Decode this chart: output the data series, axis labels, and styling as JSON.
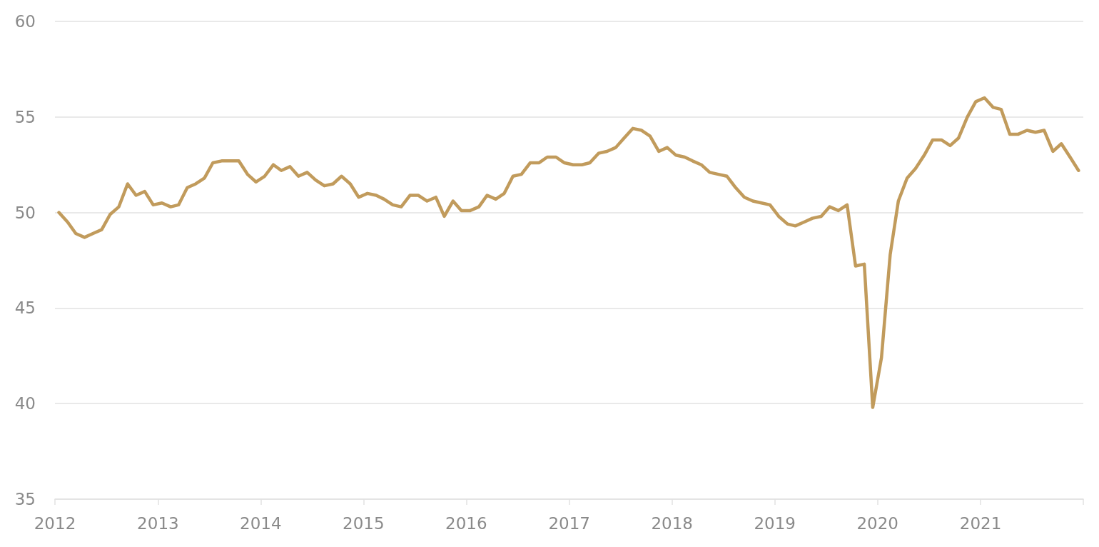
{
  "chart_data": {
    "type": "line",
    "x": [
      "2012-01-15",
      "2012-02-15",
      "2012-03-15",
      "2012-04-15",
      "2012-05-15",
      "2012-06-15",
      "2012-07-15",
      "2012-08-15",
      "2012-09-15",
      "2012-10-15",
      "2012-11-15",
      "2012-12-15",
      "2013-01-15",
      "2013-02-15",
      "2013-03-15",
      "2013-04-15",
      "2013-05-15",
      "2013-06-15",
      "2013-07-15",
      "2013-08-15",
      "2013-09-15",
      "2013-10-15",
      "2013-11-15",
      "2013-12-15",
      "2014-01-15",
      "2014-02-15",
      "2014-03-15",
      "2014-04-15",
      "2014-05-15",
      "2014-06-15",
      "2014-07-15",
      "2014-08-15",
      "2014-09-15",
      "2014-10-15",
      "2014-11-15",
      "2014-12-15",
      "2015-01-15",
      "2015-02-15",
      "2015-03-15",
      "2015-04-15",
      "2015-05-15",
      "2015-06-15",
      "2015-07-15",
      "2015-08-15",
      "2015-09-15",
      "2015-10-15",
      "2015-11-15",
      "2015-12-15",
      "2016-01-15",
      "2016-02-15",
      "2016-03-15",
      "2016-04-15",
      "2016-05-15",
      "2016-06-15",
      "2016-07-15",
      "2016-08-15",
      "2016-09-15",
      "2016-10-15",
      "2016-11-15",
      "2016-12-15",
      "2017-01-15",
      "2017-02-15",
      "2017-03-15",
      "2017-04-15",
      "2017-05-15",
      "2017-06-15",
      "2017-07-15",
      "2017-08-15",
      "2017-09-15",
      "2017-10-15",
      "2017-11-15",
      "2017-12-15",
      "2018-01-15",
      "2018-02-15",
      "2018-03-15",
      "2018-04-15",
      "2018-05-15",
      "2018-06-15",
      "2018-07-15",
      "2018-08-15",
      "2018-09-15",
      "2018-10-15",
      "2018-11-15",
      "2018-12-15",
      "2019-01-15",
      "2019-02-15",
      "2019-03-15",
      "2019-04-15",
      "2019-05-15",
      "2019-06-15",
      "2019-07-15",
      "2019-08-15",
      "2019-09-15",
      "2019-10-15",
      "2019-11-15",
      "2019-12-15",
      "2020-01-15",
      "2020-02-15",
      "2020-03-15",
      "2020-04-15",
      "2020-05-15",
      "2020-06-15",
      "2020-07-15",
      "2020-08-15",
      "2020-09-15",
      "2020-10-15",
      "2020-11-15",
      "2020-12-15",
      "2021-01-15",
      "2021-02-15",
      "2021-03-15",
      "2021-04-15",
      "2021-05-15",
      "2021-06-15",
      "2021-07-15",
      "2021-08-15",
      "2021-09-15",
      "2021-10-15",
      "2021-11-15",
      "2021-12-15"
    ],
    "series": [
      {
        "color": "#c19b5c",
        "values": [
          50.0,
          49.5,
          48.9,
          48.7,
          48.9,
          49.1,
          49.9,
          50.3,
          51.5,
          50.9,
          51.1,
          50.4,
          50.5,
          50.3,
          50.4,
          51.3,
          51.5,
          51.8,
          52.6,
          52.7,
          52.7,
          52.7,
          52.0,
          51.6,
          51.9,
          52.5,
          52.2,
          52.4,
          51.9,
          52.1,
          51.7,
          51.4,
          51.5,
          51.9,
          51.5,
          50.8,
          51.0,
          50.9,
          50.7,
          50.4,
          50.3,
          50.9,
          50.9,
          50.6,
          50.8,
          49.8,
          50.6,
          50.1,
          50.1,
          50.3,
          50.9,
          50.7,
          51.0,
          51.9,
          52.0,
          52.6,
          52.6,
          52.9,
          52.9,
          52.6,
          52.5,
          52.5,
          52.6,
          53.1,
          53.2,
          53.4,
          53.9,
          54.4,
          54.3,
          54.0,
          53.2,
          53.4,
          53.0,
          52.9,
          52.7,
          52.5,
          52.1,
          52.0,
          51.9,
          51.3,
          50.8,
          50.6,
          50.5,
          50.4,
          49.8,
          49.4,
          49.3,
          49.5,
          49.7,
          49.8,
          50.3,
          50.1,
          50.4,
          47.2,
          47.3,
          39.8,
          42.4,
          47.8,
          50.6,
          51.8,
          52.3,
          53.0,
          53.8,
          53.8,
          53.5,
          53.9,
          55.0,
          55.8,
          56.0,
          55.5,
          55.4,
          54.1,
          54.1,
          54.3,
          54.2,
          54.3,
          53.2,
          53.6,
          52.9,
          52.2
        ]
      }
    ],
    "xlim": [
      "2012",
      "2022"
    ],
    "xticks": [
      "2012",
      "2013",
      "2014",
      "2015",
      "2016",
      "2017",
      "2018",
      "2019",
      "2020",
      "2021",
      {
        "value": "2022",
        "label": null
      }
    ],
    "ylim": [
      35,
      60
    ],
    "yticks": [
      35,
      40,
      45,
      50,
      55,
      60
    ],
    "grid": "y"
  }
}
